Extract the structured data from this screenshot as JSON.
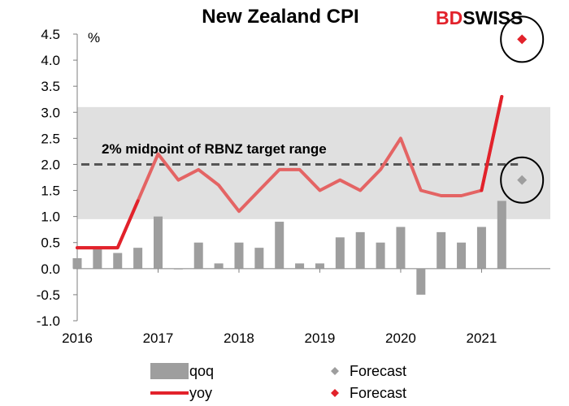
{
  "brand": {
    "logo_bd": "BD",
    "logo_swiss": "SWISS",
    "red": "#e2222b"
  },
  "chart_data": {
    "type": "bar+line",
    "title": "New Zealand CPI",
    "ylabel": "%",
    "ylim": [
      -1.0,
      4.5
    ],
    "yticks": [
      "-1.0",
      "-0.5",
      "0.0",
      "0.5",
      "1.0",
      "1.5",
      "2.0",
      "2.5",
      "3.0",
      "3.5",
      "4.0",
      "4.5"
    ],
    "ytick_values": [
      -1.0,
      -0.5,
      0.0,
      0.5,
      1.0,
      1.5,
      2.0,
      2.5,
      3.0,
      3.5,
      4.0,
      4.5
    ],
    "xticks": [
      "2016",
      "2017",
      "2018",
      "2019",
      "2020",
      "2021"
    ],
    "xtick_values": [
      2016,
      2017,
      2018,
      2019,
      2020,
      2021
    ],
    "target_band": [
      0.95,
      3.1
    ],
    "midpoint": {
      "value": 2.0,
      "label": "2% midpoint of RBNZ target range"
    },
    "qoq": {
      "name": "qoq",
      "color": "#9e9e9e",
      "x": [
        2016.0,
        2016.25,
        2016.5,
        2016.75,
        2017.0,
        2017.25,
        2017.5,
        2017.75,
        2018.0,
        2018.25,
        2018.5,
        2018.75,
        2019.0,
        2019.25,
        2019.5,
        2019.75,
        2020.0,
        2020.25,
        2020.5,
        2020.75,
        2021.0,
        2021.25
      ],
      "values": [
        0.2,
        0.4,
        0.3,
        0.4,
        1.0,
        0.0,
        0.5,
        0.1,
        0.5,
        0.4,
        0.9,
        0.1,
        0.1,
        0.6,
        0.7,
        0.5,
        0.8,
        -0.5,
        0.7,
        0.5,
        0.8,
        1.3
      ]
    },
    "yoy": {
      "name": "yoy",
      "color": "#e46464",
      "highlight_color": "#e2222b",
      "x": [
        2016.0,
        2016.25,
        2016.5,
        2016.75,
        2017.0,
        2017.25,
        2017.5,
        2017.75,
        2018.0,
        2018.25,
        2018.5,
        2018.75,
        2019.0,
        2019.25,
        2019.5,
        2019.75,
        2020.0,
        2020.25,
        2020.5,
        2020.75,
        2021.0,
        2021.25
      ],
      "values": [
        0.4,
        0.4,
        0.4,
        1.3,
        2.2,
        1.7,
        1.9,
        1.6,
        1.1,
        1.5,
        1.9,
        1.9,
        1.5,
        1.7,
        1.5,
        1.9,
        2.5,
        1.5,
        1.4,
        1.4,
        1.5,
        3.3
      ],
      "highlight_ranges": [
        [
          0,
          3
        ],
        [
          20,
          21
        ]
      ]
    },
    "forecasts": [
      {
        "name": "Forecast",
        "series": "qoq",
        "x": 2021.5,
        "value": 1.7,
        "color": "#9e9e9e"
      },
      {
        "name": "Forecast",
        "series": "yoy",
        "x": 2021.5,
        "value": 4.4,
        "color": "#e2222b"
      }
    ],
    "legend": [
      {
        "label": "qoq",
        "kind": "bar",
        "color": "#9e9e9e"
      },
      {
        "label": "Forecast",
        "kind": "diamond",
        "color": "#9e9e9e"
      },
      {
        "label": "yoy",
        "kind": "line",
        "color": "#e2222b"
      },
      {
        "label": "Forecast",
        "kind": "diamond",
        "color": "#e2222b"
      }
    ]
  }
}
